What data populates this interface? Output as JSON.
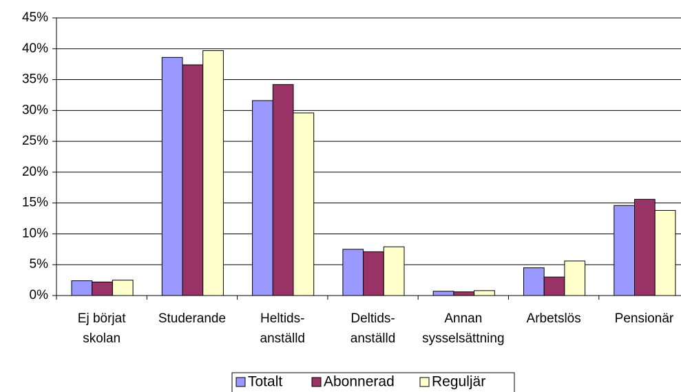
{
  "chart_data": {
    "type": "bar",
    "categories": [
      "Ej börjat\nskolan",
      "Studerande",
      "Heltids-\nanställd",
      "Deltids-\nanställd",
      "Annan\nsysselsättning",
      "Arbetslös",
      "Pensionär"
    ],
    "series": [
      {
        "name": "Totalt",
        "color": "#9999ff",
        "values": [
          2.4,
          38.6,
          31.6,
          7.5,
          0.7,
          4.5,
          14.6
        ]
      },
      {
        "name": "Abonnerad",
        "color": "#993366",
        "values": [
          2.2,
          37.4,
          34.2,
          7.1,
          0.6,
          3.0,
          15.6
        ]
      },
      {
        "name": "Reguljär",
        "color": "#ffffcc",
        "values": [
          2.5,
          39.7,
          29.6,
          7.9,
          0.8,
          5.6,
          13.8
        ]
      }
    ],
    "ylim": [
      0,
      45
    ],
    "yticks": [
      {
        "value": 0,
        "label": "0%"
      },
      {
        "value": 5,
        "label": "5%"
      },
      {
        "value": 10,
        "label": "10%"
      },
      {
        "value": 15,
        "label": "15%"
      },
      {
        "value": 20,
        "label": "20%"
      },
      {
        "value": 25,
        "label": "25%"
      },
      {
        "value": 30,
        "label": "30%"
      },
      {
        "value": 35,
        "label": "35%"
      },
      {
        "value": 40,
        "label": "40%"
      },
      {
        "value": 45,
        "label": "45%"
      }
    ],
    "grid": true,
    "legend": "bottom"
  }
}
